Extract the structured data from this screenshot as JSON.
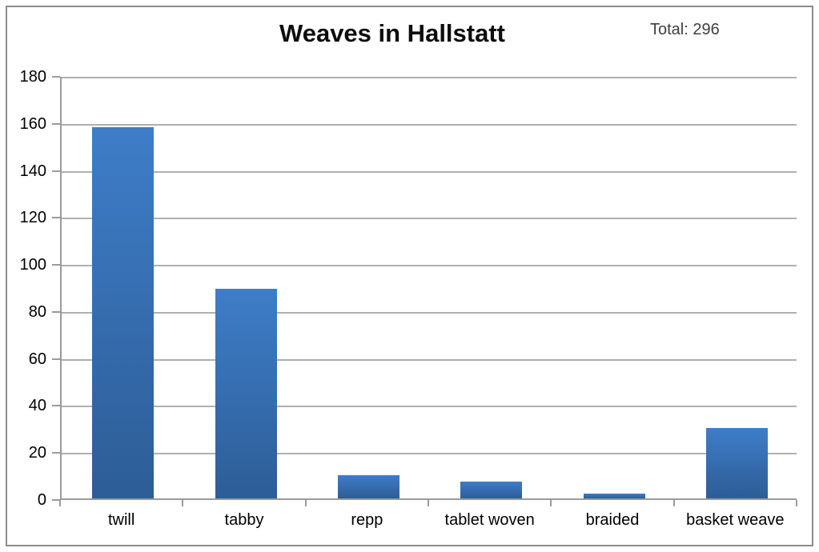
{
  "header": {
    "title": "Weaves in Hallstatt",
    "total_label": "Total: 296"
  },
  "chart_data": {
    "type": "bar",
    "title": "Weaves in Hallstatt",
    "annotation": "Total: 296",
    "categories": [
      "twill",
      "tabby",
      "repp",
      "tablet woven",
      "braided",
      "basket weave"
    ],
    "values": [
      158,
      89,
      10,
      7,
      2,
      30
    ],
    "total": 296,
    "xlabel": "",
    "ylabel": "",
    "ylim": [
      0,
      180
    ],
    "ytick_step": 20,
    "grid": true,
    "legend": "none",
    "colors": {
      "bar_top": "#3e7dc8",
      "bar_bottom": "#2d5d96",
      "gridline": "#b0b0b0",
      "axis": "#9a9a9a",
      "frame_border": "#8c8c8c",
      "title_text": "#0d0d0d",
      "annotation_text": "#3f3f3f",
      "tick_text": "#000000"
    }
  }
}
